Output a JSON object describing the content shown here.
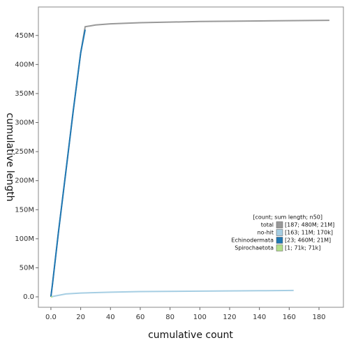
{
  "chart_data": {
    "type": "line",
    "x_label": "cumulative count",
    "y_label": "cumulative length",
    "xlim": [
      -8.4,
      196.4
    ],
    "xticks": [
      {
        "value": 0,
        "label": "0.0"
      },
      20,
      40,
      60,
      80,
      100,
      120,
      140,
      160,
      180
    ],
    "ylim": [
      -18000000,
      499000000
    ],
    "yticks": [
      {
        "value": 0,
        "label": "0.0"
      },
      {
        "value": 50000000,
        "label": "50M"
      },
      {
        "value": 100000000,
        "label": "100M"
      },
      {
        "value": 150000000,
        "label": "150M"
      },
      {
        "value": 200000000,
        "label": "200M"
      },
      {
        "value": 250000000,
        "label": "250M"
      },
      {
        "value": 300000000,
        "label": "300M"
      },
      {
        "value": 350000000,
        "label": "350M"
      },
      {
        "value": 400000000,
        "label": "400M"
      },
      {
        "value": 450000000,
        "label": "450M"
      }
    ],
    "grid": false,
    "legend_title": "[count; sum length; n50]",
    "legend_position": "right",
    "series": [
      {
        "name": "total",
        "stats": "[187; 480M; 21M]",
        "color": "#999999",
        "x": [
          0,
          1,
          5,
          10,
          15,
          20,
          23,
          30,
          40,
          60,
          100,
          140,
          187
        ],
        "values": [
          0,
          21000000,
          110000000,
          215000000,
          320000000,
          420000000,
          465000000,
          468000000,
          470000000,
          472000000,
          474000000,
          475000000,
          476000000
        ]
      },
      {
        "name": "no-hit",
        "stats": "[163; 11M; 170k]",
        "color": "#a6cee3",
        "x": [
          0,
          10,
          20,
          40,
          60,
          100,
          140,
          163
        ],
        "values": [
          0,
          5000000,
          6500000,
          8000000,
          9000000,
          9800000,
          10500000,
          11000000
        ]
      },
      {
        "name": "Echinodermata",
        "stats": "[23; 460M; 21M]",
        "color": "#1f78b4",
        "x": [
          0,
          1,
          5,
          10,
          15,
          20,
          23
        ],
        "values": [
          0,
          21000000,
          110000000,
          215000000,
          320000000,
          420000000,
          460000000
        ]
      },
      {
        "name": "Spirochaetota",
        "stats": "[1; 71k; 71k]",
        "color": "#b2df8a",
        "x": [
          0,
          1
        ],
        "values": [
          0,
          71000
        ]
      }
    ]
  }
}
